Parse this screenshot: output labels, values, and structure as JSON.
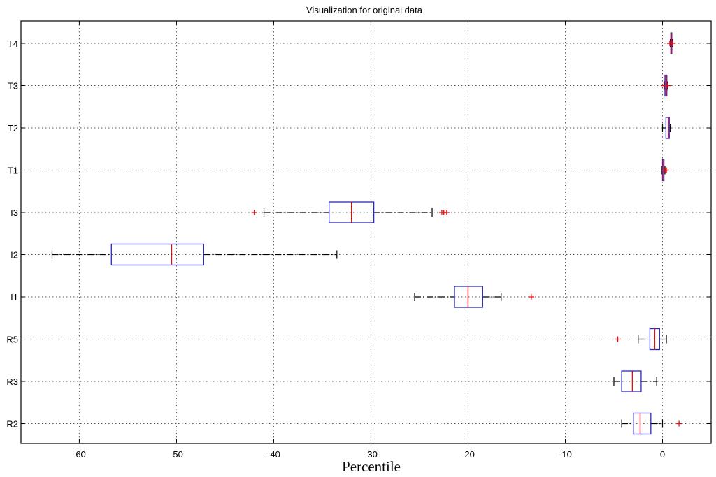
{
  "chart_data": {
    "type": "boxplot",
    "orientation": "horizontal",
    "title": "Visualization for original data",
    "xlabel": "Percentile",
    "ylabel": "",
    "xlim": [
      -66,
      5
    ],
    "xticks": [
      -60,
      -50,
      -40,
      -30,
      -20,
      -10,
      0
    ],
    "grid": true,
    "colors": {
      "box": "#2a2ab8",
      "median": "#e01010",
      "whisker": "#000000",
      "outlier": "#e01010"
    },
    "categories": [
      "T4",
      "T3",
      "T2",
      "T1",
      "I3",
      "I2",
      "I1",
      "R5",
      "R3",
      "R2"
    ],
    "boxes": [
      {
        "label": "T4",
        "whisker_low": 0.8,
        "q1": 0.85,
        "median": 0.9,
        "q3": 0.95,
        "whisker_high": 1.0,
        "outliers": [
          0.75,
          1.05
        ]
      },
      {
        "label": "T3",
        "whisker_low": 0.2,
        "q1": 0.25,
        "median": 0.35,
        "q3": 0.45,
        "whisker_high": 0.5,
        "outliers": [
          0.15,
          0.55
        ]
      },
      {
        "label": "T2",
        "whisker_low": 0.0,
        "q1": 0.35,
        "median": 0.6,
        "q3": 0.7,
        "whisker_high": 0.8,
        "outliers": []
      },
      {
        "label": "T1",
        "whisker_low": -0.1,
        "q1": 0.0,
        "median": 0.05,
        "q3": 0.15,
        "whisker_high": 0.25,
        "outliers": [
          0.3,
          0.4
        ]
      },
      {
        "label": "I3",
        "whisker_low": -41.0,
        "q1": -34.3,
        "median": -32.0,
        "q3": -29.7,
        "whisker_high": -23.7,
        "outliers": [
          -42.0,
          -22.7,
          -22.5,
          -22.2
        ]
      },
      {
        "label": "I2",
        "whisker_low": -62.8,
        "q1": -56.7,
        "median": -50.5,
        "q3": -47.2,
        "whisker_high": -33.5,
        "outliers": []
      },
      {
        "label": "I1",
        "whisker_low": -25.5,
        "q1": -21.4,
        "median": -20.0,
        "q3": -18.5,
        "whisker_high": -16.6,
        "outliers": [
          -13.5
        ]
      },
      {
        "label": "R5",
        "whisker_low": -2.5,
        "q1": -1.3,
        "median": -0.8,
        "q3": -0.3,
        "whisker_high": 0.4,
        "outliers": [
          -4.6
        ]
      },
      {
        "label": "R3",
        "whisker_low": -5.0,
        "q1": -4.2,
        "median": -3.1,
        "q3": -2.2,
        "whisker_high": -0.6,
        "outliers": []
      },
      {
        "label": "R2",
        "whisker_low": -4.2,
        "q1": -3.0,
        "median": -2.3,
        "q3": -1.2,
        "whisker_high": 0.0,
        "outliers": [
          1.7
        ]
      }
    ]
  }
}
